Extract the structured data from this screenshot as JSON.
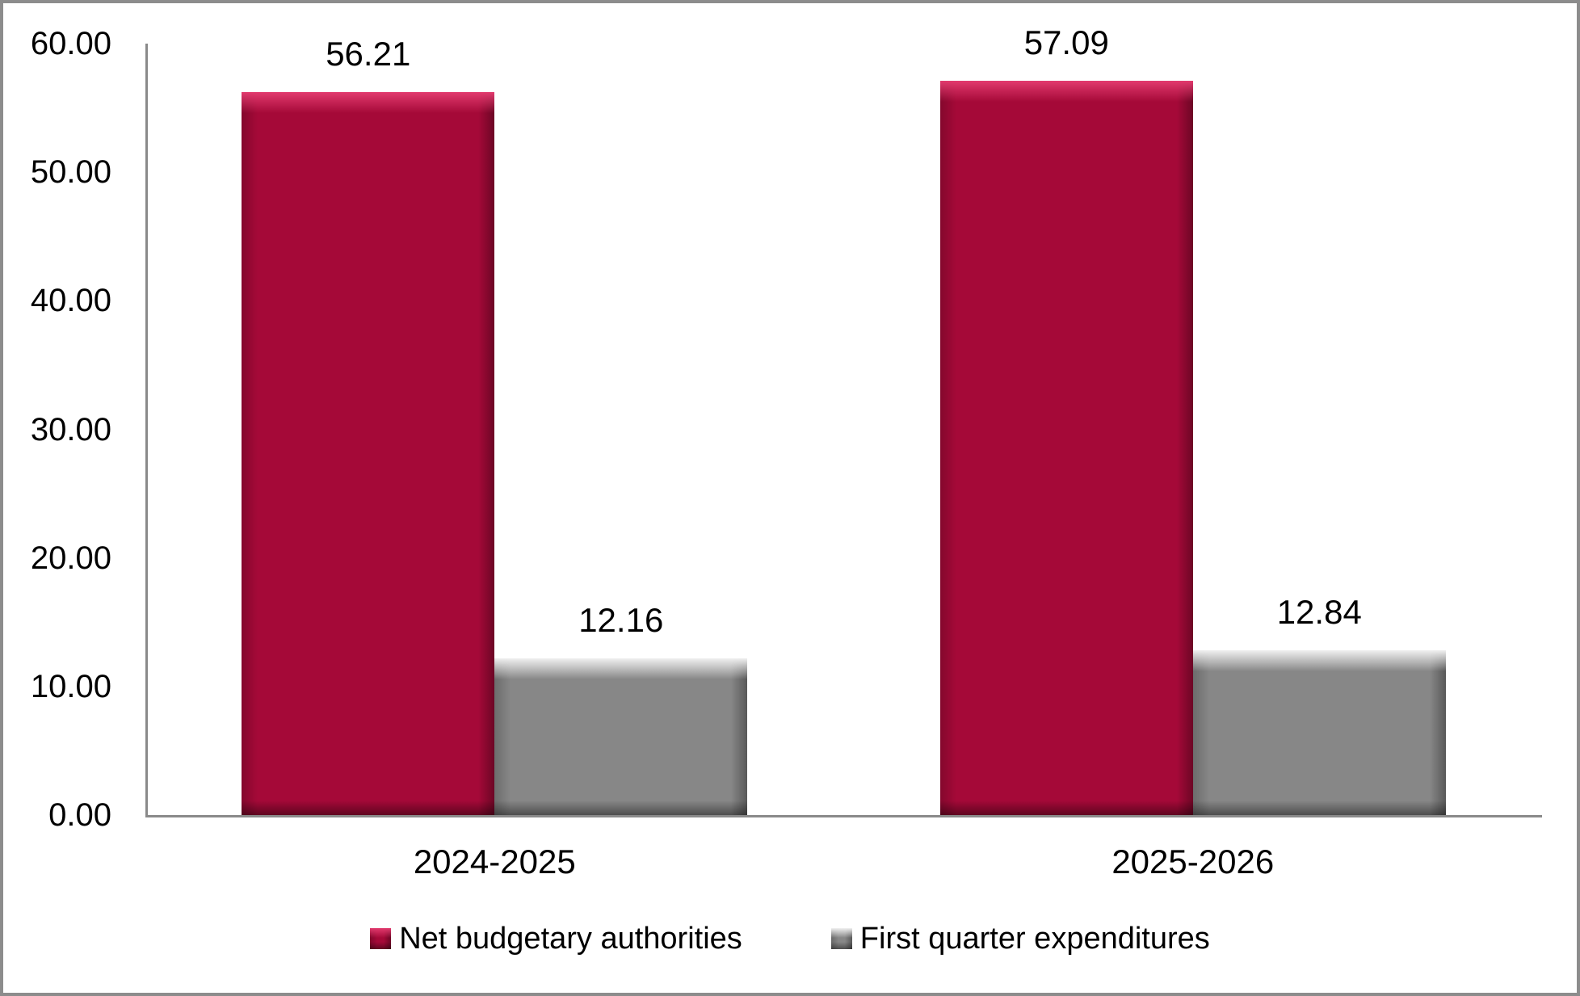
{
  "window": {
    "background_color": "#FFFFFF",
    "frame_border_color": "#8C8C8C",
    "axis_color": "#8A8A8A",
    "text_color": "#000000"
  },
  "chart_data": {
    "type": "bar",
    "title": "",
    "categories": [
      "2024-2025",
      "2025-2026"
    ],
    "series": [
      {
        "name": "Net budgetary authorities",
        "color": "#A50938",
        "highlight_color": "#E23A6E",
        "values": [
          56.21,
          57.09
        ],
        "data_labels": [
          "56.21",
          "57.09"
        ]
      },
      {
        "name": "First quarter expenditures",
        "color": "#878787",
        "highlight_color": "#F0F0F0",
        "values": [
          12.16,
          12.84
        ],
        "data_labels": [
          "12.16",
          "12.84"
        ]
      }
    ],
    "y_axis": {
      "min": 0,
      "max": 60,
      "step": 10,
      "tick_labels": [
        "0.00",
        "10.00",
        "20.00",
        "30.00",
        "40.00",
        "50.00",
        "60.00"
      ]
    },
    "x_axis": {
      "labels": [
        "2024-2025",
        "2025-2026"
      ]
    },
    "legend": {
      "position": "bottom",
      "entries": [
        "Net budgetary authorities",
        "First quarter expenditures"
      ]
    },
    "grid": false,
    "data_label_style": "outside-end, two decimals"
  }
}
